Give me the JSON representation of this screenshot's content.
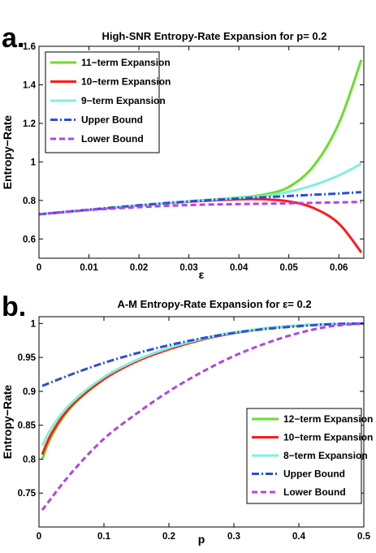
{
  "chart_data": [
    {
      "panel_label": "a.",
      "type": "line",
      "title": "High-SNR Entropy-Rate Expansion for p= 0.2",
      "xlabel": "ε",
      "ylabel": "Entropy−Rate",
      "xlim": [
        0,
        0.065
      ],
      "ylim": [
        0.5,
        1.6
      ],
      "xticks": [
        0,
        0.01,
        0.02,
        0.03,
        0.04,
        0.05,
        0.06
      ],
      "xtick_labels": [
        "0",
        "0.01",
        "0.02",
        "0.03",
        "0.04",
        "0.05",
        "0.06"
      ],
      "yticks": [
        0.6,
        0.8,
        1.0,
        1.2,
        1.4,
        1.6
      ],
      "ytick_labels": [
        "0.6",
        "0.8",
        "1",
        "1.2",
        "1.4",
        "1.6"
      ],
      "legend_position": "top-left",
      "series": [
        {
          "name": "11−term Expansion",
          "color": "#66e02a",
          "style": "solid",
          "x": [
            0,
            0.01,
            0.02,
            0.03,
            0.04,
            0.045,
            0.05,
            0.055,
            0.06,
            0.0645
          ],
          "y": [
            0.728,
            0.751,
            0.773,
            0.795,
            0.815,
            0.83,
            0.87,
            0.98,
            1.2,
            1.53
          ]
        },
        {
          "name": "10−term Expansion",
          "color": "#ff1a1a",
          "style": "solid",
          "x": [
            0,
            0.01,
            0.02,
            0.03,
            0.04,
            0.045,
            0.05,
            0.055,
            0.06,
            0.0645
          ],
          "y": [
            0.728,
            0.751,
            0.773,
            0.793,
            0.806,
            0.806,
            0.795,
            0.76,
            0.68,
            0.53
          ]
        },
        {
          "name": "9−term Expansion",
          "color": "#7ff0dc",
          "style": "solid",
          "x": [
            0,
            0.01,
            0.02,
            0.03,
            0.04,
            0.045,
            0.05,
            0.055,
            0.06,
            0.0645
          ],
          "y": [
            0.728,
            0.751,
            0.773,
            0.795,
            0.813,
            0.823,
            0.845,
            0.88,
            0.93,
            0.99
          ]
        },
        {
          "name": "Upper Bound",
          "color": "#2a4fdc",
          "style": "dashdot",
          "x": [
            0,
            0.01,
            0.02,
            0.03,
            0.04,
            0.05,
            0.06,
            0.0645
          ],
          "y": [
            0.728,
            0.752,
            0.775,
            0.795,
            0.81,
            0.823,
            0.836,
            0.843
          ]
        },
        {
          "name": "Lower Bound",
          "color": "#b144e8",
          "style": "dashed",
          "x": [
            0,
            0.01,
            0.02,
            0.03,
            0.04,
            0.05,
            0.06,
            0.0645
          ],
          "y": [
            0.728,
            0.75,
            0.765,
            0.776,
            0.781,
            0.785,
            0.79,
            0.792
          ]
        }
      ]
    },
    {
      "panel_label": "b.",
      "type": "line",
      "title": "A-M Entropy-Rate Expansion for ε= 0.2",
      "xlabel": "p",
      "ylabel": "Entropy−Rate",
      "xlim": [
        0,
        0.5
      ],
      "ylim": [
        0.7,
        1.01
      ],
      "xticks": [
        0,
        0.1,
        0.2,
        0.3,
        0.4,
        0.5
      ],
      "xtick_labels": [
        "0",
        "0.1",
        "0.2",
        "0.3",
        "0.4",
        "0.5"
      ],
      "yticks": [
        0.75,
        0.8,
        0.85,
        0.9,
        0.95,
        1.0
      ],
      "ytick_labels": [
        "0.75",
        "0.8",
        "0.85",
        "0.9",
        "0.95",
        "1"
      ],
      "legend_position": "bottom-right",
      "series": [
        {
          "name": "12−term Expansion",
          "color": "#66e02a",
          "style": "solid",
          "x": [
            0.005,
            0.02,
            0.05,
            0.1,
            0.15,
            0.2,
            0.25,
            0.3,
            0.35,
            0.4,
            0.45,
            0.5
          ],
          "y": [
            0.8,
            0.835,
            0.877,
            0.918,
            0.944,
            0.962,
            0.976,
            0.986,
            0.993,
            0.997,
            0.999,
            1.0
          ]
        },
        {
          "name": "10−term Expansion",
          "color": "#ff1a1a",
          "style": "solid",
          "x": [
            0.005,
            0.02,
            0.05,
            0.1,
            0.15,
            0.2,
            0.25,
            0.3,
            0.35,
            0.4,
            0.45,
            0.5
          ],
          "y": [
            0.807,
            0.839,
            0.879,
            0.918,
            0.944,
            0.962,
            0.976,
            0.986,
            0.993,
            0.997,
            0.999,
            1.0
          ]
        },
        {
          "name": "8−term Expansion",
          "color": "#7ff0dc",
          "style": "solid",
          "x": [
            0.005,
            0.02,
            0.05,
            0.1,
            0.15,
            0.2,
            0.25,
            0.3,
            0.35,
            0.4,
            0.45,
            0.5
          ],
          "y": [
            0.82,
            0.847,
            0.883,
            0.921,
            0.946,
            0.964,
            0.977,
            0.987,
            0.993,
            0.997,
            0.999,
            1.0
          ]
        },
        {
          "name": "Upper Bound",
          "color": "#2a4fdc",
          "style": "dashdot",
          "x": [
            0.005,
            0.05,
            0.1,
            0.15,
            0.2,
            0.25,
            0.3,
            0.35,
            0.4,
            0.45,
            0.5
          ],
          "y": [
            0.908,
            0.925,
            0.942,
            0.956,
            0.968,
            0.978,
            0.986,
            0.992,
            0.996,
            0.999,
            1.0
          ]
        },
        {
          "name": "Lower Bound",
          "color": "#b144e8",
          "style": "dashed",
          "x": [
            0.005,
            0.05,
            0.1,
            0.15,
            0.2,
            0.25,
            0.3,
            0.35,
            0.4,
            0.45,
            0.5
          ],
          "y": [
            0.725,
            0.78,
            0.83,
            0.867,
            0.9,
            0.928,
            0.952,
            0.971,
            0.986,
            0.996,
            1.0
          ]
        }
      ]
    }
  ]
}
